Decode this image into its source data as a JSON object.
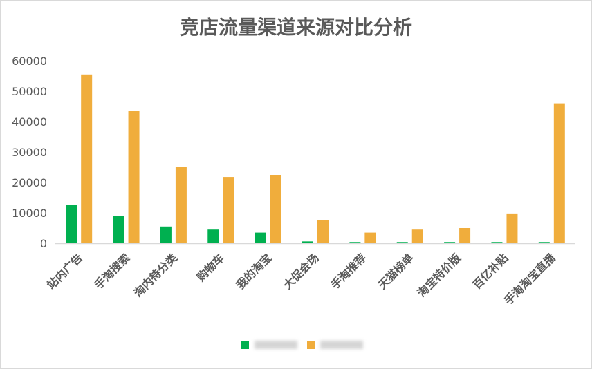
{
  "chart_data": {
    "type": "bar",
    "title": "竞店流量渠道来源对比分析",
    "xlabel": "",
    "ylabel": "",
    "ylim": [
      0,
      60000
    ],
    "yticks": [
      0,
      10000,
      20000,
      30000,
      40000,
      50000,
      60000
    ],
    "grid": false,
    "legend_position": "bottom",
    "categories": [
      "站内广告",
      "手淘搜索",
      "淘内待分类",
      "购物车",
      "我的淘宝",
      "大促会场",
      "手淘推荐",
      "天猫榜单",
      "淘宝特价版",
      "百亿补贴",
      "手淘淘宝直播"
    ],
    "series": [
      {
        "color": "#00b050",
        "values": [
          12500,
          9000,
          5500,
          4500,
          3500,
          600,
          400,
          400,
          400,
          400,
          400
        ]
      },
      {
        "color": "#f0ad3c",
        "values": [
          55500,
          43500,
          25000,
          21800,
          22500,
          7500,
          3500,
          4500,
          5000,
          9800,
          46000
        ]
      }
    ]
  }
}
